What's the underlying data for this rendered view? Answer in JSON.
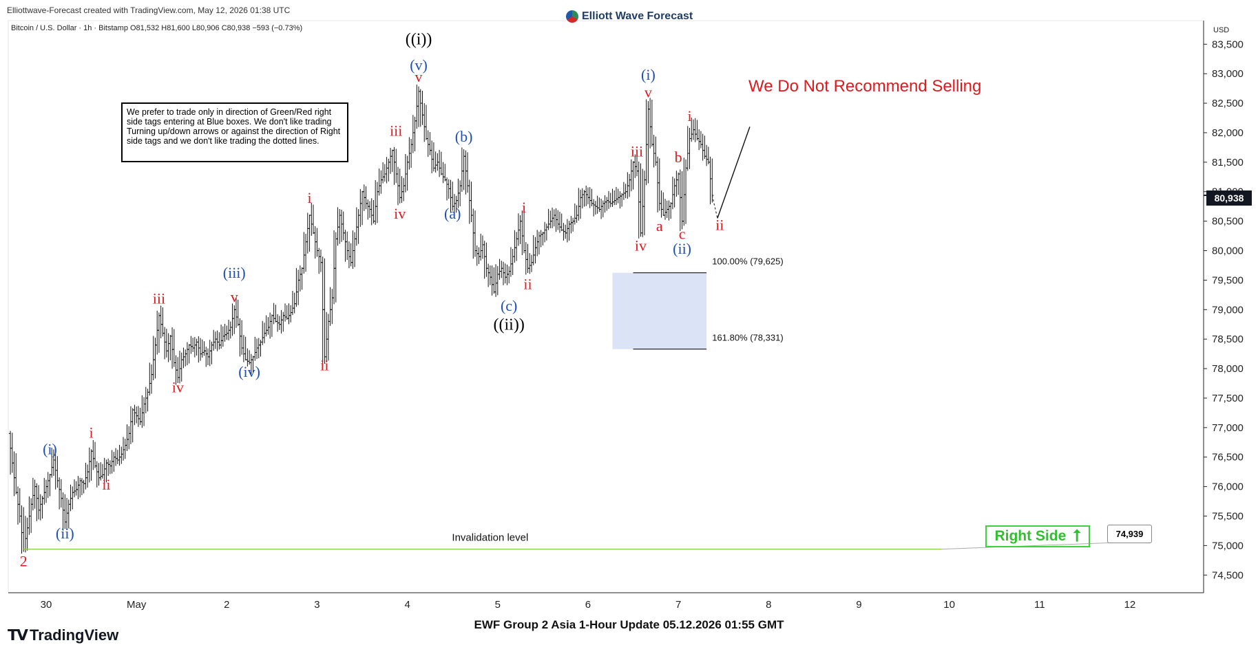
{
  "header": {
    "credit": "Elliottwave-Forecast created with TradingView.com, May 12, 2026 01:38 UTC",
    "brand": "Elliott Wave Forecast",
    "symbol_line": "Bitcoin / U.S. Dollar · 1h · Bitstamp  O81,532  H81,600  L80,906  C80,938  −593 (−0.73%)"
  },
  "note_box": "We prefer to trade only in direction of Green/Red right side tags entering at Blue boxes. We don't like trading Turning up/down arrows or against the direction of Right side tags and we don't like trading the dotted lines.",
  "warning_text": "We Do Not Recommend Selling",
  "footer_title": "EWF Group 2 Asia 1-Hour Update 05.12.2026 01:55 GMT",
  "tradingview_logo": "TradingView",
  "right_side": {
    "label": "Right Side",
    "arrow": "up-arrow-icon",
    "color": "#3cd23c"
  },
  "invalidation": {
    "label": "Invalidation level",
    "value_label": "74,939",
    "color": "#8fd14f"
  },
  "last_price_label": "80,938",
  "chart_data": {
    "type": "candlestick",
    "currency": "USD",
    "y_axis": {
      "min": 74200,
      "max": 83900,
      "ticks": [
        74500,
        75000,
        75500,
        76000,
        76500,
        77000,
        77500,
        78000,
        78500,
        79000,
        79500,
        80000,
        80500,
        81000,
        81500,
        82000,
        82500,
        83000,
        83500
      ]
    },
    "y_tick_labels": [
      "74,500",
      "75,000",
      "75,500",
      "76,000",
      "76,500",
      "77,000",
      "77,500",
      "78,000",
      "78,500",
      "79,000",
      "79,500",
      "80,000",
      "80,500",
      "81,000",
      "81,500",
      "82,000",
      "82,500",
      "83,000",
      "83,500"
    ],
    "x_axis": {
      "ticks": [
        {
          "label": "30",
          "t": 0
        },
        {
          "label": "May",
          "t": 24
        },
        {
          "label": "2",
          "t": 48
        },
        {
          "label": "3",
          "t": 72
        },
        {
          "label": "4",
          "t": 96
        },
        {
          "label": "5",
          "t": 120
        },
        {
          "label": "6",
          "t": 144
        },
        {
          "label": "7",
          "t": 168
        },
        {
          "label": "8",
          "t": 192
        },
        {
          "label": "9",
          "t": 216
        },
        {
          "label": "10",
          "t": 240
        },
        {
          "label": "11",
          "t": 264
        },
        {
          "label": "12",
          "t": 288
        }
      ]
    },
    "price_path": [
      [
        -10,
        76900
      ],
      [
        -9,
        76400
      ],
      [
        -8,
        75900
      ],
      [
        -7,
        75500
      ],
      [
        -6,
        74939
      ],
      [
        -5,
        75300
      ],
      [
        -4,
        75700
      ],
      [
        -3,
        76000
      ],
      [
        -2,
        75600
      ],
      [
        -1,
        75800
      ],
      [
        1,
        76200
      ],
      [
        2,
        76450
      ],
      [
        3,
        76100
      ],
      [
        4,
        75800
      ],
      [
        5,
        75400
      ],
      [
        6,
        75700
      ],
      [
        7,
        75900
      ],
      [
        8,
        75950
      ],
      [
        9,
        76100
      ],
      [
        10,
        76050
      ],
      [
        11,
        76250
      ],
      [
        12,
        76600
      ],
      [
        13,
        76350
      ],
      [
        14,
        76150
      ],
      [
        15,
        76200
      ],
      [
        16,
        76400
      ],
      [
        17,
        76350
      ],
      [
        18,
        76500
      ],
      [
        19,
        76450
      ],
      [
        20,
        76550
      ],
      [
        21,
        76700
      ],
      [
        22,
        76900
      ],
      [
        23,
        77300
      ],
      [
        24,
        77200
      ],
      [
        25,
        77100
      ],
      [
        26,
        77400
      ],
      [
        27,
        77600
      ],
      [
        28,
        77900
      ],
      [
        29,
        78400
      ],
      [
        30,
        78900
      ],
      [
        31,
        78600
      ],
      [
        32,
        78300
      ],
      [
        33,
        78550
      ],
      [
        34,
        78100
      ],
      [
        35,
        77850
      ],
      [
        36,
        78150
      ],
      [
        37,
        78250
      ],
      [
        38,
        78400
      ],
      [
        39,
        78350
      ],
      [
        40,
        78450
      ],
      [
        41,
        78250
      ],
      [
        42,
        78300
      ],
      [
        43,
        78200
      ],
      [
        44,
        78400
      ],
      [
        45,
        78500
      ],
      [
        46,
        78400
      ],
      [
        47,
        78550
      ],
      [
        48,
        78600
      ],
      [
        49,
        78700
      ],
      [
        50,
        79000
      ],
      [
        51,
        78750
      ],
      [
        52,
        78350
      ],
      [
        53,
        78150
      ],
      [
        54,
        78100
      ],
      [
        55,
        78200
      ],
      [
        56,
        78350
      ],
      [
        57,
        78450
      ],
      [
        58,
        78600
      ],
      [
        59,
        78700
      ],
      [
        60,
        78900
      ],
      [
        61,
        78800
      ],
      [
        62,
        78750
      ],
      [
        63,
        78900
      ],
      [
        64,
        78850
      ],
      [
        65,
        78950
      ],
      [
        66,
        79100
      ],
      [
        67,
        79500
      ],
      [
        68,
        79700
      ],
      [
        69,
        80150
      ],
      [
        70,
        80600
      ],
      [
        71,
        80300
      ],
      [
        72,
        80000
      ],
      [
        73,
        79800
      ],
      [
        74,
        78200
      ],
      [
        75,
        78800
      ],
      [
        76,
        79200
      ],
      [
        77,
        80200
      ],
      [
        78,
        80600
      ],
      [
        79,
        80300
      ],
      [
        80,
        80000
      ],
      [
        81,
        79800
      ],
      [
        82,
        80200
      ],
      [
        83,
        80600
      ],
      [
        84,
        81000
      ],
      [
        85,
        80800
      ],
      [
        86,
        80700
      ],
      [
        87,
        80500
      ],
      [
        88,
        81000
      ],
      [
        89,
        81200
      ],
      [
        90,
        81300
      ],
      [
        91,
        81500
      ],
      [
        92,
        81700
      ],
      [
        93,
        81300
      ],
      [
        94,
        80900
      ],
      [
        95,
        81100
      ],
      [
        96,
        81500
      ],
      [
        97,
        81800
      ],
      [
        98,
        82200
      ],
      [
        99,
        82700
      ],
      [
        100,
        82300
      ],
      [
        101,
        81900
      ],
      [
        102,
        81700
      ],
      [
        103,
        81400
      ],
      [
        104,
        81500
      ],
      [
        105,
        81300
      ],
      [
        106,
        81200
      ],
      [
        107,
        81050
      ],
      [
        108,
        80750
      ],
      [
        109,
        80850
      ],
      [
        110,
        81100
      ],
      [
        111,
        81600
      ],
      [
        112,
        81100
      ],
      [
        113,
        80600
      ],
      [
        114,
        80000
      ],
      [
        115,
        79900
      ],
      [
        116,
        80100
      ],
      [
        117,
        79700
      ],
      [
        118,
        79550
      ],
      [
        119,
        79300
      ],
      [
        120,
        79600
      ],
      [
        121,
        79700
      ],
      [
        122,
        79550
      ],
      [
        123,
        79650
      ],
      [
        124,
        79900
      ],
      [
        125,
        80200
      ],
      [
        126,
        80500
      ],
      [
        127,
        80000
      ],
      [
        128,
        79700
      ],
      [
        129,
        79800
      ],
      [
        130,
        80050
      ],
      [
        131,
        80250
      ],
      [
        132,
        80300
      ],
      [
        133,
        80400
      ],
      [
        134,
        80500
      ],
      [
        135,
        80600
      ],
      [
        136,
        80450
      ],
      [
        137,
        80350
      ],
      [
        138,
        80300
      ],
      [
        139,
        80450
      ],
      [
        140,
        80500
      ],
      [
        141,
        80600
      ],
      [
        142,
        80900
      ],
      [
        143,
        81000
      ],
      [
        144,
        80900
      ],
      [
        145,
        80800
      ],
      [
        146,
        80750
      ],
      [
        147,
        80700
      ],
      [
        148,
        80800
      ],
      [
        149,
        80850
      ],
      [
        150,
        80800
      ],
      [
        151,
        80850
      ],
      [
        152,
        80900
      ],
      [
        153,
        80950
      ],
      [
        154,
        81000
      ],
      [
        155,
        81200
      ],
      [
        156,
        81500
      ],
      [
        157,
        81350
      ],
      [
        158,
        80300
      ],
      [
        159,
        81200
      ],
      [
        160,
        82400
      ],
      [
        161,
        81800
      ],
      [
        162,
        81500
      ],
      [
        163,
        80800
      ],
      [
        164,
        80600
      ],
      [
        165,
        80700
      ],
      [
        166,
        80800
      ],
      [
        167,
        81100
      ],
      [
        168,
        81300
      ],
      [
        169,
        80500
      ],
      [
        170,
        81400
      ],
      [
        171,
        81900
      ],
      [
        172,
        82050
      ],
      [
        173,
        81900
      ],
      [
        174,
        81800
      ],
      [
        175,
        81600
      ],
      [
        176,
        81500
      ],
      [
        177,
        80938
      ]
    ],
    "price_path_note": "t in hours from Apr 30 00:00",
    "fib_levels": [
      {
        "label": "100.00% (79,625)",
        "price": 79625
      },
      {
        "label": "161.80% (78,331)",
        "price": 78331
      }
    ],
    "blue_box": {
      "t_from": 150.5,
      "t_to": 175.5,
      "price_top": 79625,
      "price_bottom": 78331
    },
    "invalidation_price": 74939,
    "last_price": 80938,
    "wave_labels": [
      {
        "text": "2",
        "t": -6,
        "price": 74650,
        "color": "red"
      },
      {
        "text": "(i)",
        "t": 1,
        "price": 76550,
        "color": "blue"
      },
      {
        "text": "(ii)",
        "t": 5,
        "price": 75120,
        "color": "blue"
      },
      {
        "text": "i",
        "t": 12,
        "price": 76830,
        "color": "red"
      },
      {
        "text": "ii",
        "t": 16,
        "price": 75950,
        "color": "red"
      },
      {
        "text": "iii",
        "t": 30,
        "price": 79100,
        "color": "red"
      },
      {
        "text": "iv",
        "t": 35,
        "price": 77600,
        "color": "red"
      },
      {
        "text": "(iii)",
        "t": 50,
        "price": 79540,
        "color": "blue"
      },
      {
        "text": "v",
        "t": 50,
        "price": 79130,
        "color": "red"
      },
      {
        "text": "(iv)",
        "t": 54,
        "price": 77860,
        "color": "blue"
      },
      {
        "text": "i",
        "t": 70,
        "price": 80810,
        "color": "red"
      },
      {
        "text": "ii",
        "t": 74,
        "price": 77970,
        "color": "red"
      },
      {
        "text": "iii",
        "t": 93,
        "price": 81950,
        "color": "red"
      },
      {
        "text": "iv",
        "t": 94,
        "price": 80540,
        "color": "red"
      },
      {
        "text": "((i))",
        "t": 99,
        "price": 83500,
        "color": "black"
      },
      {
        "text": "(v)",
        "t": 99,
        "price": 83060,
        "color": "blue"
      },
      {
        "text": "v",
        "t": 99,
        "price": 82860,
        "color": "red"
      },
      {
        "text": "(a)",
        "t": 108,
        "price": 80540,
        "color": "blue"
      },
      {
        "text": "(b)",
        "t": 111,
        "price": 81850,
        "color": "blue"
      },
      {
        "text": "(c)",
        "t": 123,
        "price": 78980,
        "color": "blue"
      },
      {
        "text": "((ii))",
        "t": 123,
        "price": 78660,
        "color": "black"
      },
      {
        "text": "i",
        "t": 127,
        "price": 80650,
        "color": "red"
      },
      {
        "text": "ii",
        "t": 128,
        "price": 79350,
        "color": "red"
      },
      {
        "text": "iii",
        "t": 157,
        "price": 81600,
        "color": "red"
      },
      {
        "text": "iv",
        "t": 158,
        "price": 80000,
        "color": "red"
      },
      {
        "text": "(i)",
        "t": 160,
        "price": 82900,
        "color": "blue"
      },
      {
        "text": "v",
        "t": 160,
        "price": 82600,
        "color": "red"
      },
      {
        "text": "a",
        "t": 163,
        "price": 80330,
        "color": "red"
      },
      {
        "text": "b",
        "t": 168,
        "price": 81500,
        "color": "red"
      },
      {
        "text": "c",
        "t": 169,
        "price": 80200,
        "color": "red"
      },
      {
        "text": "(ii)",
        "t": 169,
        "price": 79950,
        "color": "blue"
      },
      {
        "text": "i",
        "t": 171,
        "price": 82200,
        "color": "red"
      },
      {
        "text": "ii",
        "t": 179,
        "price": 80350,
        "color": "red"
      }
    ],
    "projection": [
      [
        177,
        80938
      ],
      [
        178.4,
        80550
      ],
      [
        187,
        82100
      ]
    ]
  }
}
